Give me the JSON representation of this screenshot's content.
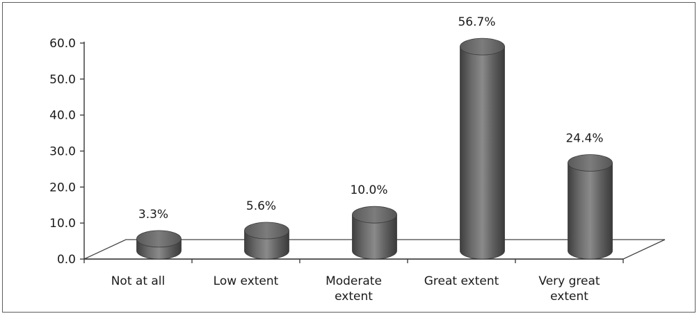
{
  "chart_data": {
    "type": "bar",
    "style": "3d-cylinder",
    "categories": [
      [
        "Not at all"
      ],
      [
        "Low extent"
      ],
      [
        "Moderate",
        "extent"
      ],
      [
        "Great extent"
      ],
      [
        "Very great",
        "extent"
      ]
    ],
    "values": [
      3.3,
      5.6,
      10.0,
      56.7,
      24.4
    ],
    "data_labels": [
      "3.3%",
      "5.6%",
      "10.0%",
      "56.7%",
      "24.4%"
    ],
    "y_ticks": [
      "0.0",
      "10.0",
      "20.0",
      "30.0",
      "40.0",
      "50.0",
      "60.0"
    ],
    "ylim": [
      0,
      60
    ],
    "grid": false,
    "legend": "none",
    "bar_color": "#6e6e6e"
  }
}
